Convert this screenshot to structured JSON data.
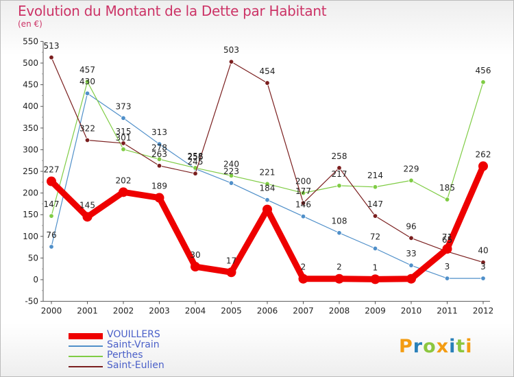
{
  "title": "Evolution du Montant de la Dette par Habitant",
  "subtitle": "(en €)",
  "chart_data": {
    "type": "line",
    "x": [
      "2000",
      "2001",
      "2002",
      "2003",
      "2004",
      "2005",
      "2006",
      "2007",
      "2008",
      "2009",
      "2010",
      "2011",
      "2012"
    ],
    "ylim": [
      -50,
      550
    ],
    "yticks": [
      -50,
      0,
      50,
      100,
      150,
      200,
      250,
      300,
      350,
      400,
      450,
      500,
      550
    ],
    "grid": false,
    "legend_position": "bottom-left",
    "series": [
      {
        "name": "VOUILLERS",
        "color": "#ee0000",
        "values": [
          227,
          145,
          202,
          189,
          30,
          17,
          162,
          2,
          2,
          1,
          2,
          71,
          262
        ],
        "labels": [
          "227",
          "145",
          "202",
          "189",
          "30",
          "17",
          "",
          "2",
          "2",
          "1",
          "",
          "71",
          "262"
        ]
      },
      {
        "name": "Saint-Vrain",
        "color": "#4f8fc9",
        "values": [
          76,
          430,
          373,
          313,
          256,
          223,
          184,
          146,
          108,
          72,
          33,
          3,
          3
        ],
        "labels": [
          "76",
          "430",
          "373",
          "313",
          "256",
          "223",
          "184",
          "146",
          "108",
          "72",
          "33",
          "3",
          "3"
        ]
      },
      {
        "name": "Perthes",
        "color": "#7fcc44",
        "values": [
          147,
          457,
          301,
          278,
          258,
          240,
          221,
          200,
          217,
          214,
          229,
          185,
          456
        ],
        "labels": [
          "147",
          "457",
          "301",
          "278",
          "258",
          "240",
          "221",
          "200",
          "217",
          "214",
          "229",
          "185",
          "456"
        ]
      },
      {
        "name": "Saint-Eulien",
        "color": "#7a1e1e",
        "values": [
          513,
          322,
          315,
          263,
          245,
          503,
          454,
          177,
          258,
          147,
          96,
          65,
          40
        ],
        "labels": [
          "513",
          "322",
          "315",
          "263",
          "245",
          "503",
          "454",
          "177",
          "258",
          "147",
          "96",
          "65",
          "40"
        ]
      }
    ]
  },
  "logo": {
    "parts": [
      "P",
      "r",
      "o",
      "x",
      "i",
      "t",
      "i"
    ],
    "colors": [
      "#f39c12",
      "#2980b9",
      "#8cc63f",
      "#f39c12",
      "#2980b9",
      "#8cc63f",
      "#f39c12"
    ]
  }
}
